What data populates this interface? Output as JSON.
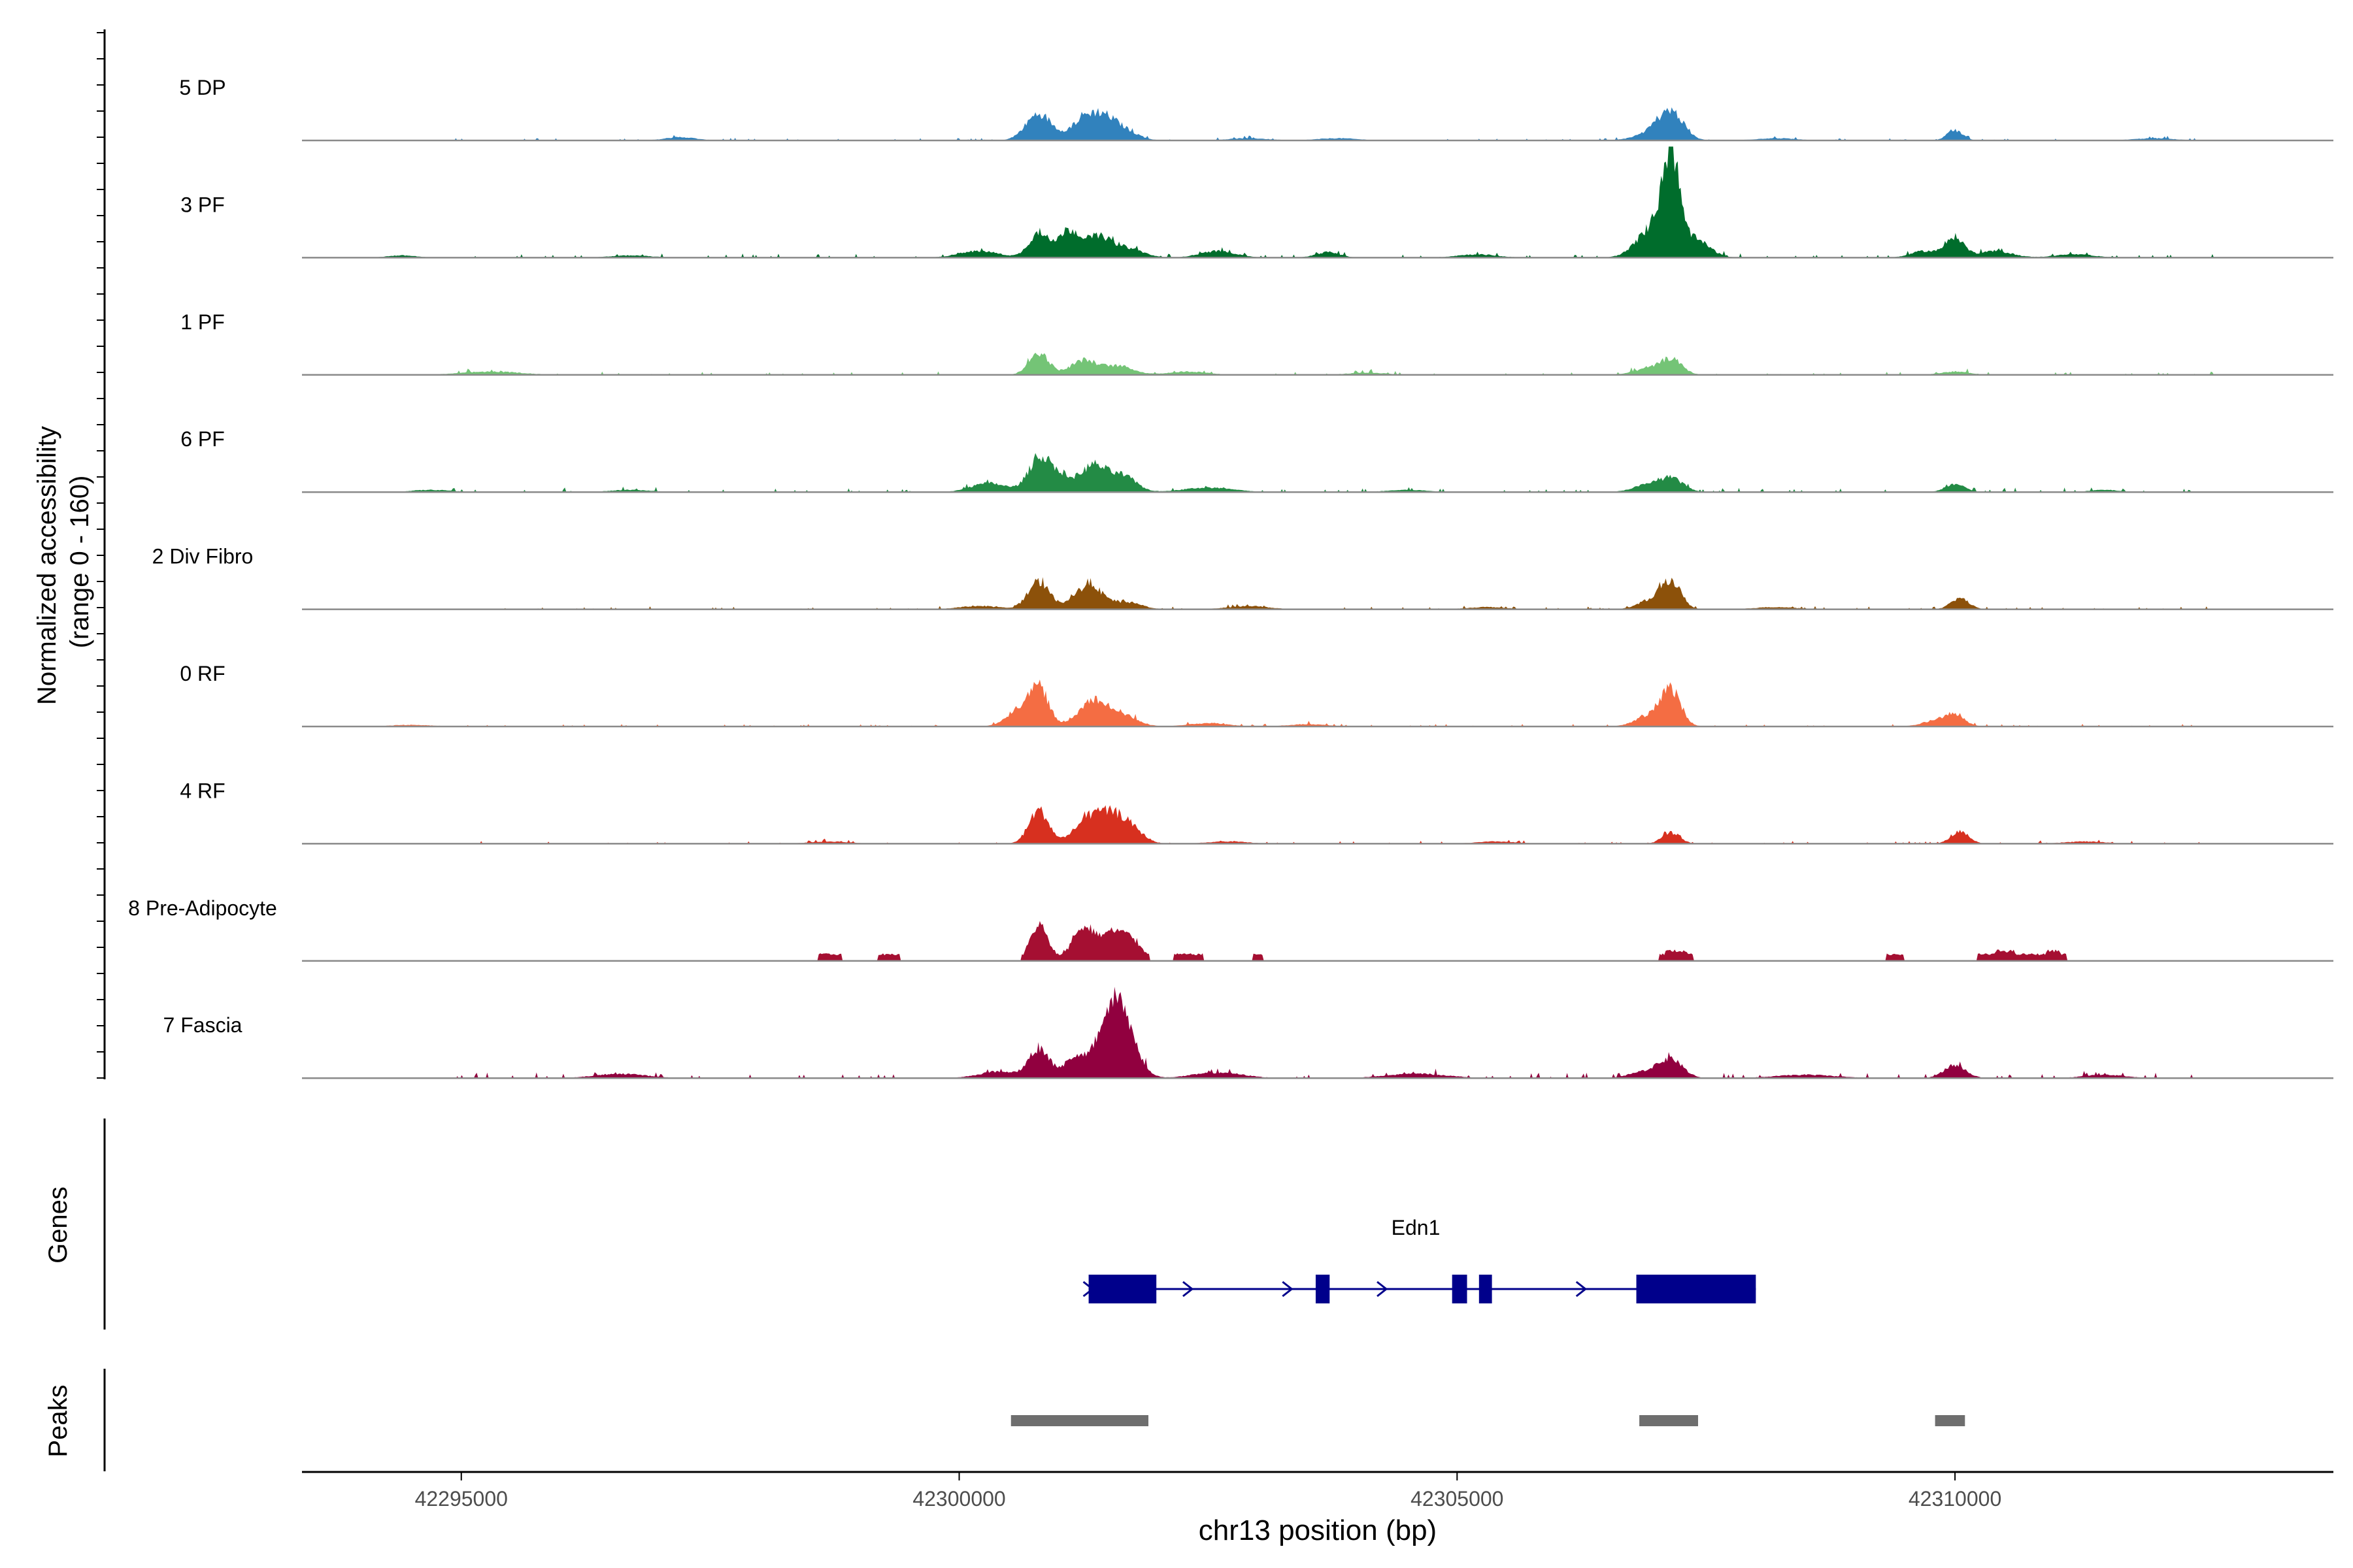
{
  "chart_data": {
    "type": "area",
    "title": "",
    "ylabel": "Normalized accessibility (range 0 - 160)",
    "ylabel_line1": "Normalized accessibility",
    "ylabel_line2": "(range 0 - 160)",
    "yrange": [
      0,
      160
    ],
    "xlabel": "chr13 position (bp)",
    "xlim": [
      42293400,
      42313800
    ],
    "xticks": [
      42295000,
      42300000,
      42305000,
      42310000
    ],
    "xtick_labels": [
      "42295000",
      "42300000",
      "42305000",
      "42310000"
    ],
    "tracks": [
      {
        "name": "5 DP",
        "color": "#3182bd",
        "peaks": [
          [
            42300800,
            24,
            130
          ],
          [
            42301250,
            18,
            130
          ],
          [
            42301450,
            16,
            120
          ],
          [
            42301650,
            9,
            140
          ],
          [
            42307150,
            22,
            120
          ],
          [
            42307000,
            8,
            180
          ],
          [
            42310000,
            9,
            80
          ],
          [
            42297200,
            3,
            150
          ],
          [
            42302900,
            2,
            200
          ],
          [
            42303800,
            2,
            200
          ],
          [
            42308200,
            2,
            200
          ],
          [
            42312000,
            2,
            200
          ]
        ],
        "base": 0.7
      },
      {
        "name": "3 PF",
        "color": "#006d2c",
        "peaks": [
          [
            42300800,
            22,
            100
          ],
          [
            42301100,
            24,
            110
          ],
          [
            42301400,
            18,
            130
          ],
          [
            42301700,
            8,
            150
          ],
          [
            42300200,
            6,
            200
          ],
          [
            42302600,
            6,
            180
          ],
          [
            42303700,
            5,
            120
          ],
          [
            42307150,
            78,
            80
          ],
          [
            42307000,
            30,
            170
          ],
          [
            42307400,
            15,
            140
          ],
          [
            42310000,
            18,
            90
          ],
          [
            42309700,
            6,
            140
          ],
          [
            42310400,
            6,
            170
          ],
          [
            42294400,
            2,
            150
          ],
          [
            42296700,
            2,
            200
          ],
          [
            42305200,
            3,
            200
          ],
          [
            42311200,
            3,
            200
          ]
        ],
        "base": 1.2
      },
      {
        "name": "1 PF",
        "color": "#74c476",
        "peaks": [
          [
            42300800,
            20,
            100
          ],
          [
            42301250,
            13,
            130
          ],
          [
            42301600,
            8,
            150
          ],
          [
            42307150,
            14,
            110
          ],
          [
            42306900,
            5,
            140
          ],
          [
            42310000,
            3,
            150
          ],
          [
            42295300,
            3,
            300
          ],
          [
            42302300,
            3,
            200
          ],
          [
            42304100,
            2,
            200
          ]
        ],
        "base": 1.0
      },
      {
        "name": "6 PF",
        "color": "#238b45",
        "peaks": [
          [
            42300800,
            28,
            110
          ],
          [
            42301000,
            14,
            120
          ],
          [
            42301350,
            24,
            130
          ],
          [
            42301650,
            14,
            130
          ],
          [
            42300300,
            8,
            180
          ],
          [
            42302500,
            4,
            250
          ],
          [
            42307150,
            12,
            120
          ],
          [
            42306900,
            6,
            140
          ],
          [
            42310000,
            7,
            100
          ],
          [
            42294700,
            2,
            200
          ],
          [
            42296700,
            2,
            200
          ],
          [
            42304500,
            2,
            200
          ],
          [
            42311500,
            2,
            150
          ]
        ],
        "base": 1.2
      },
      {
        "name": "2 Div Fibro",
        "color": "#8c510a",
        "peaks": [
          [
            42300800,
            24,
            110
          ],
          [
            42301300,
            22,
            140
          ],
          [
            42301700,
            6,
            140
          ],
          [
            42307150,
            24,
            100
          ],
          [
            42306950,
            8,
            130
          ],
          [
            42310050,
            10,
            90
          ],
          [
            42300200,
            3,
            200
          ],
          [
            42302900,
            3,
            200
          ],
          [
            42305300,
            2,
            200
          ],
          [
            42308200,
            2,
            200
          ]
        ],
        "base": 0.8
      },
      {
        "name": "0 RF",
        "color": "#f46d43",
        "peaks": [
          [
            42300800,
            33,
            100
          ],
          [
            42300600,
            14,
            130
          ],
          [
            42301350,
            24,
            140
          ],
          [
            42301650,
            10,
            140
          ],
          [
            42307150,
            30,
            100
          ],
          [
            42306950,
            10,
            150
          ],
          [
            42310000,
            10,
            100
          ],
          [
            42309800,
            5,
            130
          ],
          [
            42302500,
            3,
            200
          ],
          [
            42294500,
            1.5,
            200
          ],
          [
            42303500,
            2,
            200
          ]
        ],
        "base": 0.8
      },
      {
        "name": "4 RF",
        "color": "#d7301f",
        "peaks": [
          [
            42300800,
            30,
            100
          ],
          [
            42301300,
            22,
            140
          ],
          [
            42301550,
            22,
            130
          ],
          [
            42301750,
            10,
            120
          ],
          [
            42307150,
            10,
            90
          ],
          [
            42310050,
            11,
            90
          ],
          [
            42298700,
            2,
            200
          ],
          [
            42302700,
            2,
            200
          ],
          [
            42305400,
            2,
            200
          ],
          [
            42311300,
            2,
            200
          ]
        ],
        "base": 0.8
      },
      {
        "name": "8 Pre-Adipocyte",
        "color": "#a50f32",
        "peaks": [
          [
            42300800,
            32,
            90
          ],
          [
            42301250,
            30,
            120
          ],
          [
            42301550,
            24,
            120
          ],
          [
            42301750,
            14,
            100
          ],
          [
            42302300,
            6,
            200
          ],
          [
            42298700,
            6,
            150
          ],
          [
            42299300,
            6,
            150
          ],
          [
            42307200,
            10,
            140
          ],
          [
            42310500,
            8,
            260
          ],
          [
            42309400,
            5,
            200
          ],
          [
            42311000,
            8,
            100
          ],
          [
            42303000,
            5,
            100
          ]
        ],
        "base": 0,
        "blocky": true
      },
      {
        "name": "7 Fascia",
        "color": "#91003f",
        "peaks": [
          [
            42300800,
            26,
            100
          ],
          [
            42301150,
            16,
            120
          ],
          [
            42301450,
            36,
            120
          ],
          [
            42301600,
            50,
            100
          ],
          [
            42301750,
            20,
            110
          ],
          [
            42300400,
            6,
            200
          ],
          [
            42302600,
            5,
            250
          ],
          [
            42307150,
            16,
            120
          ],
          [
            42306900,
            6,
            160
          ],
          [
            42310000,
            12,
            110
          ],
          [
            42296600,
            4,
            250
          ],
          [
            42304600,
            4,
            300
          ],
          [
            42308500,
            3,
            300
          ],
          [
            42311500,
            3,
            200
          ]
        ],
        "base": 1.5
      }
    ],
    "genes": {
      "label": "Genes",
      "name": "Edn1",
      "start": 42301300,
      "end": 42308000,
      "strand": "+",
      "exons": [
        [
          42301300,
          42301980
        ],
        [
          42303580,
          42303720
        ],
        [
          42304950,
          42305100
        ],
        [
          42305220,
          42305350
        ],
        [
          42306800,
          42308000
        ]
      ]
    },
    "peaks_track": {
      "label": "Peaks",
      "regions": [
        [
          42300520,
          42301900
        ],
        [
          42306830,
          42307420
        ],
        [
          42309800,
          42310100
        ]
      ]
    }
  }
}
